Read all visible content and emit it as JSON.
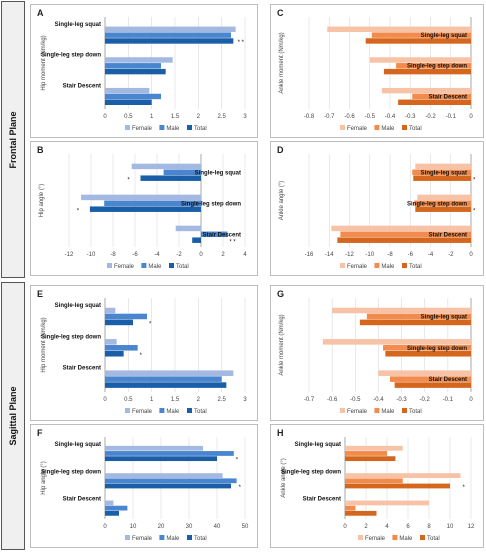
{
  "planes": {
    "frontal": "Frontal Plane",
    "sagittal": "Sagittal Plane"
  },
  "colors": {
    "blue_female": "#a3b9e1",
    "blue_male": "#4a86cf",
    "blue_total": "#1a5ea8",
    "orange_female": "#f7c2a5",
    "orange_male": "#f28b4b",
    "orange_total": "#d4661e",
    "grid": "#d9d9d9"
  },
  "chart_data": [
    {
      "panel": "A",
      "type": "bar",
      "orientation": "horizontal",
      "palette": "blue",
      "categories": [
        "Single-leg squat",
        "Single-leg step down",
        "Stair Descent"
      ],
      "series": [
        {
          "name": "Female",
          "values": [
            2.8,
            1.45,
            0.95
          ]
        },
        {
          "name": "Male",
          "values": [
            2.7,
            1.2,
            1.2
          ]
        },
        {
          "name": "Total",
          "values": [
            2.75,
            1.3,
            1.0
          ]
        }
      ],
      "ylabel": "Hip moment (Nm/kg)",
      "xlim": [
        0,
        3
      ],
      "ticks": [
        0,
        0.5,
        1,
        1.5,
        2,
        2.5,
        3
      ],
      "tick_labels": [
        "0",
        "0.5",
        "1",
        "1.5",
        "2",
        "2.5",
        "3"
      ],
      "category_label_side": "left",
      "annotations": [
        {
          "category": 0,
          "text": "* *"
        }
      ],
      "legend": [
        "Female",
        "Male",
        "Total"
      ]
    },
    {
      "panel": "B",
      "type": "bar",
      "orientation": "horizontal",
      "palette": "blue",
      "categories": [
        "Single-leg squat",
        "Single-leg step down",
        "Stair Descent"
      ],
      "series": [
        {
          "name": "Female",
          "values": [
            -6.3,
            -10.9,
            -2.3
          ]
        },
        {
          "name": "Male",
          "values": [
            -3.4,
            -8.8,
            2.4
          ]
        },
        {
          "name": "Total",
          "values": [
            -5.5,
            -10.1,
            -0.8
          ]
        }
      ],
      "ylabel": "Hip angle (°)",
      "xlim": [
        -12,
        4
      ],
      "ticks": [
        -12,
        -10,
        -8,
        -6,
        -4,
        -2,
        0,
        2,
        4
      ],
      "tick_labels": [
        "-12",
        "-10",
        "-8",
        "-6",
        "-4",
        "-2",
        "0",
        "2",
        "4"
      ],
      "category_label_side": "right",
      "annotations": [
        {
          "category": 0,
          "text": "*"
        },
        {
          "category": 1,
          "text": "*"
        },
        {
          "category": 2,
          "text": "* *"
        }
      ],
      "legend": [
        "Female",
        "Male",
        "Total"
      ]
    },
    {
      "panel": "C",
      "type": "bar",
      "orientation": "horizontal",
      "palette": "orange",
      "categories": [
        "Single-leg squat",
        "Single-leg step down",
        "Stair Descent"
      ],
      "series": [
        {
          "name": "Female",
          "values": [
            -0.71,
            -0.5,
            -0.44
          ]
        },
        {
          "name": "Male",
          "values": [
            -0.49,
            -0.37,
            -0.29
          ]
        },
        {
          "name": "Total",
          "values": [
            -0.52,
            -0.43,
            -0.36
          ]
        }
      ],
      "ylabel": "Ankle moment (Nm/kg)",
      "xlim": [
        -0.8,
        0
      ],
      "ticks": [
        -0.8,
        -0.7,
        -0.6,
        -0.5,
        -0.4,
        -0.3,
        -0.2,
        -0.1,
        0
      ],
      "tick_labels": [
        "-0.8",
        "-0.7",
        "-0.6",
        "-0.5",
        "-0.4",
        "-0.3",
        "-0.2",
        "-0.1",
        "0"
      ],
      "category_label_side": "right",
      "annotations": [],
      "legend": [
        "Female",
        "Male",
        "Total"
      ]
    },
    {
      "panel": "D",
      "type": "bar",
      "orientation": "horizontal",
      "palette": "orange",
      "categories": [
        "Single-leg squat",
        "Single-leg step down",
        "Stair Descent"
      ],
      "series": [
        {
          "name": "Female",
          "values": [
            -5.5,
            -5.3,
            -13.8
          ]
        },
        {
          "name": "Male",
          "values": [
            -5.8,
            -5.6,
            -12.9
          ]
        },
        {
          "name": "Total",
          "values": [
            -5.7,
            -5.5,
            -13.2
          ]
        }
      ],
      "ylabel": "Ankle angle (°)",
      "xlim": [
        -16,
        0
      ],
      "ticks": [
        -16,
        -14,
        -12,
        -10,
        -8,
        -6,
        -4,
        -2,
        0
      ],
      "tick_labels": [
        "-16",
        "-14",
        "-12",
        "-10",
        "-8",
        "-6",
        "-4",
        "-2",
        "0"
      ],
      "category_label_side": "right",
      "annotations": [
        {
          "category": 0,
          "text": "*"
        },
        {
          "category": 1,
          "text": "*"
        }
      ],
      "legend": [
        "Female",
        "Male",
        "Total"
      ]
    },
    {
      "panel": "E",
      "type": "bar",
      "orientation": "horizontal",
      "palette": "blue",
      "categories": [
        "Single-leg squat",
        "Single-leg step down",
        "Stair Descent"
      ],
      "series": [
        {
          "name": "Female",
          "values": [
            0.22,
            0.25,
            2.75
          ]
        },
        {
          "name": "Male",
          "values": [
            0.9,
            0.7,
            2.5
          ]
        },
        {
          "name": "Total",
          "values": [
            0.6,
            0.4,
            2.6
          ]
        }
      ],
      "ylabel": "Hip moment (Nm/kg)",
      "xlim": [
        0,
        3
      ],
      "ticks": [
        0,
        0.5,
        1,
        1.5,
        2,
        2.5,
        3
      ],
      "tick_labels": [
        "0",
        "0.5",
        "1",
        "1.5",
        "2",
        "2.5",
        "3"
      ],
      "category_label_side": "left",
      "annotations": [
        {
          "category": 0,
          "text": "*"
        },
        {
          "category": 1,
          "text": "*"
        }
      ],
      "legend": [
        "Female",
        "Male",
        "Total"
      ]
    },
    {
      "panel": "F",
      "type": "bar",
      "orientation": "horizontal",
      "palette": "blue",
      "categories": [
        "Single-leg squat",
        "Single-leg step down",
        "Stair Descent"
      ],
      "series": [
        {
          "name": "Female",
          "values": [
            35,
            42,
            3
          ]
        },
        {
          "name": "Male",
          "values": [
            46,
            47,
            8
          ]
        },
        {
          "name": "Total",
          "values": [
            40,
            45,
            5
          ]
        }
      ],
      "ylabel": "Hip angle (°)",
      "xlim": [
        0,
        50
      ],
      "ticks": [
        0,
        10,
        20,
        30,
        40,
        50
      ],
      "tick_labels": [
        "0",
        "10",
        "20",
        "30",
        "40",
        "50"
      ],
      "category_label_side": "left",
      "annotations": [
        {
          "category": 0,
          "text": "*"
        },
        {
          "category": 1,
          "text": "*"
        }
      ],
      "legend": [
        "Female",
        "Male",
        "Total"
      ]
    },
    {
      "panel": "G",
      "type": "bar",
      "orientation": "horizontal",
      "palette": "orange",
      "categories": [
        "Single-leg squat",
        "Single-leg step down",
        "Stair Descent"
      ],
      "series": [
        {
          "name": "Female",
          "values": [
            -0.6,
            -0.64,
            -0.4
          ]
        },
        {
          "name": "Male",
          "values": [
            -0.45,
            -0.38,
            -0.35
          ]
        },
        {
          "name": "Total",
          "values": [
            -0.48,
            -0.37,
            -0.33
          ]
        }
      ],
      "ylabel": "Ankle moment (Nm/kg)",
      "xlim": [
        -0.7,
        0
      ],
      "ticks": [
        -0.7,
        -0.6,
        -0.5,
        -0.4,
        -0.3,
        -0.2,
        -0.1,
        0
      ],
      "tick_labels": [
        "-0.7",
        "-0.6",
        "-0.5",
        "-0.4",
        "-0.3",
        "-0.2",
        "-0.1",
        "0"
      ],
      "category_label_side": "right",
      "annotations": [],
      "legend": [
        "Female",
        "Male",
        "Total"
      ]
    },
    {
      "panel": "H",
      "type": "bar",
      "orientation": "horizontal",
      "palette": "orange",
      "categories": [
        "Single-leg squat",
        "Single-leg step down",
        "Stair Descent"
      ],
      "series": [
        {
          "name": "Female",
          "values": [
            5.5,
            11,
            8
          ]
        },
        {
          "name": "Male",
          "values": [
            4,
            5.5,
            1
          ]
        },
        {
          "name": "Total",
          "values": [
            4.8,
            10,
            3
          ]
        }
      ],
      "ylabel": "Ankle angle (°)",
      "xlim": [
        0,
        12
      ],
      "ticks": [
        0,
        2,
        4,
        6,
        8,
        10,
        12
      ],
      "tick_labels": [
        "0",
        "2",
        "4",
        "6",
        "8",
        "10",
        "12"
      ],
      "category_label_side": "left",
      "annotations": [
        {
          "category": 1,
          "text": "*"
        }
      ],
      "legend": [
        "Female",
        "Male",
        "Total"
      ]
    }
  ]
}
